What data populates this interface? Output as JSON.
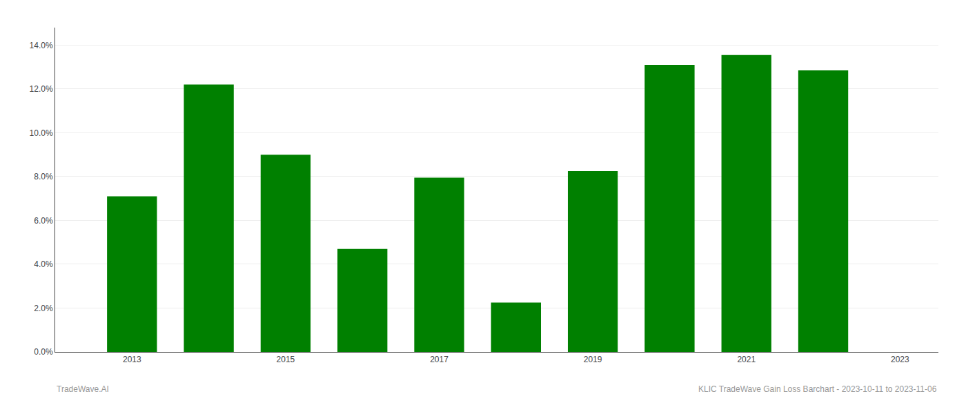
{
  "chart_data": {
    "type": "bar",
    "x": [
      2013,
      2014,
      2015,
      2016,
      2017,
      2018,
      2019,
      2020,
      2021,
      2022
    ],
    "values": [
      0.071,
      0.122,
      0.09,
      0.047,
      0.0795,
      0.0225,
      0.0825,
      0.131,
      0.1355,
      0.1285
    ],
    "color": "#008000",
    "xlim": [
      2012.0,
      2023.5
    ],
    "xticks": [
      2013,
      2015,
      2017,
      2019,
      2021,
      2023
    ],
    "ylim": [
      0,
      0.148
    ],
    "yticks": [
      {
        "value": 0.0,
        "label": "0.0%"
      },
      {
        "value": 0.02,
        "label": "2.0%"
      },
      {
        "value": 0.04,
        "label": "4.0%"
      },
      {
        "value": 0.06,
        "label": "6.0%"
      },
      {
        "value": 0.08,
        "label": "8.0%"
      },
      {
        "value": 0.1,
        "label": "10.0%"
      },
      {
        "value": 0.12,
        "label": "12.0%"
      },
      {
        "value": 0.14,
        "label": "14.0%"
      }
    ],
    "grid": "y",
    "annotations": [
      "TradeWave.AI",
      "KLIC TradeWave Gain Loss Barchart - 2023-10-11 to 2023-11-06"
    ]
  }
}
